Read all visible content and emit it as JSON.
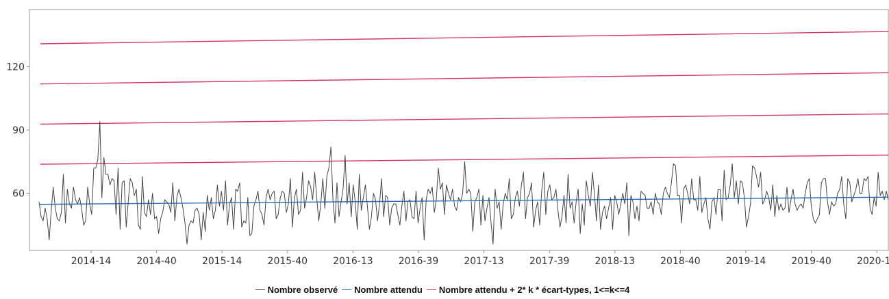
{
  "chart_data": {
    "type": "line",
    "title": "",
    "xlabel": "",
    "ylabel": "",
    "x_tick_labels": [
      "2014-14",
      "2014-40",
      "2015-14",
      "2015-40",
      "2016-13",
      "2016-39",
      "2017-13",
      "2017-39",
      "2018-13",
      "2018-40",
      "2019-14",
      "2019-40",
      "2020-14"
    ],
    "y_ticks": [
      60,
      90,
      120
    ],
    "ylim": [
      33,
      147
    ],
    "grid": false,
    "legend_position": "bottom",
    "colors": {
      "observed": "#444444",
      "expected": "#2c6bb5",
      "threshold": "#d6336c",
      "axis": "#888888"
    },
    "series": [
      {
        "name": "Nombre observé",
        "role": "observed",
        "x_start": "2014-01",
        "x_end": "2020-20",
        "values": [
          56,
          49,
          47,
          53,
          48,
          38,
          52,
          63,
          53,
          48,
          47,
          51,
          69,
          46,
          62,
          55,
          53,
          63,
          57,
          55,
          58,
          53,
          45,
          47,
          63,
          55,
          50,
          72,
          72,
          76,
          94,
          58,
          77,
          69,
          69,
          64,
          67,
          66,
          50,
          72,
          43,
          65,
          66,
          44,
          56,
          67,
          65,
          59,
          62,
          45,
          43,
          68,
          51,
          49,
          57,
          50,
          60,
          48,
          49,
          41,
          48,
          51,
          57,
          56,
          55,
          51,
          65,
          47,
          58,
          62,
          58,
          53,
          46,
          36,
          45,
          47,
          46,
          52,
          53,
          50,
          38,
          51,
          42,
          59,
          52,
          58,
          48,
          52,
          64,
          54,
          61,
          52,
          66,
          45,
          55,
          58,
          43,
          62,
          61,
          65,
          44,
          47,
          46,
          58,
          40,
          41,
          54,
          57,
          61,
          52,
          50,
          45,
          58,
          62,
          57,
          60,
          61,
          48,
          50,
          58,
          61,
          60,
          51,
          55,
          67,
          44,
          58,
          62,
          50,
          52,
          70,
          53,
          58,
          66,
          63,
          57,
          70,
          58,
          47,
          55,
          67,
          53,
          68,
          72,
          82,
          57,
          46,
          65,
          49,
          56,
          62,
          78,
          55,
          65,
          49,
          64,
          56,
          43,
          69,
          52,
          58,
          64,
          54,
          43,
          49,
          60,
          57,
          47,
          55,
          67,
          49,
          59,
          58,
          45,
          53,
          55,
          55,
          50,
          45,
          54,
          61,
          47,
          56,
          57,
          49,
          48,
          61,
          46,
          53,
          58,
          38,
          57,
          62,
          60,
          63,
          51,
          57,
          72,
          62,
          65,
          50,
          64,
          60,
          57,
          62,
          54,
          52,
          58,
          56,
          60,
          75,
          60,
          62,
          60,
          42,
          56,
          58,
          62,
          45,
          59,
          47,
          53,
          58,
          46,
          36,
          62,
          53,
          56,
          43,
          55,
          60,
          57,
          67,
          48,
          50,
          58,
          61,
          54,
          64,
          70,
          48,
          58,
          60,
          65,
          44,
          52,
          56,
          45,
          61,
          70,
          50,
          61,
          64,
          57,
          58,
          62,
          52,
          44,
          49,
          59,
          46,
          69,
          53,
          56,
          46,
          56,
          62,
          41,
          55,
          45,
          66,
          59,
          54,
          70,
          60,
          47,
          64,
          43,
          51,
          54,
          48,
          53,
          58,
          43,
          59,
          56,
          50,
          55,
          60,
          55,
          65,
          40,
          59,
          56,
          48,
          54,
          47,
          61,
          60,
          59,
          53,
          53,
          56,
          50,
          60,
          56,
          55,
          50,
          60,
          63,
          60,
          58,
          65,
          74,
          73,
          59,
          59,
          46,
          62,
          64,
          60,
          55,
          67,
          57,
          57,
          52,
          68,
          51,
          55,
          58,
          48,
          43,
          56,
          58,
          50,
          62,
          62,
          47,
          71,
          57,
          58,
          64,
          74,
          58,
          66,
          55,
          66,
          65,
          58,
          44,
          49,
          55,
          73,
          72,
          68,
          63,
          70,
          55,
          57,
          61,
          58,
          52,
          64,
          49,
          59,
          52,
          55,
          52,
          53,
          63,
          51,
          57,
          62,
          55,
          52,
          54,
          55,
          53,
          60,
          65,
          67,
          54,
          48,
          46,
          48,
          50,
          65,
          67,
          67,
          56,
          50,
          56,
          54,
          55,
          60,
          62,
          68,
          55,
          48,
          67,
          65,
          56,
          59,
          62,
          67,
          60,
          60,
          67,
          66,
          68,
          53,
          50,
          58,
          54,
          70,
          59,
          61,
          57,
          61,
          57
        ]
      },
      {
        "name": "Nombre attendu",
        "role": "expected",
        "values_start_end": [
          54.8,
          58.2
        ]
      },
      {
        "name": "Nombre attendu + 2* k * écart-types, 1<=k<=4",
        "role": "threshold",
        "lines": [
          {
            "k": 1,
            "values_start_end": [
              73.8,
              78.1
            ]
          },
          {
            "k": 2,
            "values_start_end": [
              92.8,
              97.6
            ]
          },
          {
            "k": 3,
            "values_start_end": [
              111.8,
              117.1
            ]
          },
          {
            "k": 4,
            "values_start_end": [
              130.8,
              136.6
            ]
          }
        ]
      }
    ]
  },
  "legend": {
    "observed_label": "Nombre observé",
    "expected_label": "Nombre attendu",
    "threshold_label": "Nombre attendu + 2* k * écart-types, 1<=k<=4"
  }
}
